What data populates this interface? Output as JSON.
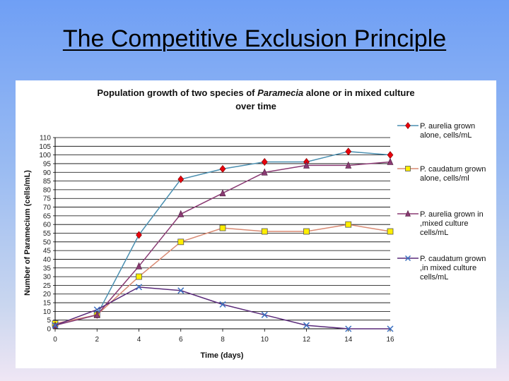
{
  "slide": {
    "title": "The Competitive Exclusion Principle"
  },
  "chart_data": {
    "type": "line",
    "title_line1_pre": "Population growth of two species of ",
    "title_line1_italic": "Paramecia",
    "title_line1_post": "  alone or in mixed culture",
    "title_line2": "over time",
    "xlabel": "Time (days)",
    "ylabel": "Number of Paramecium (cells/mL)",
    "x": [
      0,
      2,
      4,
      6,
      8,
      10,
      12,
      14,
      16
    ],
    "xlim": [
      0,
      16
    ],
    "ylim": [
      0,
      110
    ],
    "yticks": [
      0,
      5,
      10,
      15,
      20,
      25,
      30,
      35,
      40,
      45,
      50,
      55,
      60,
      65,
      70,
      75,
      80,
      85,
      90,
      95,
      100,
      105,
      110
    ],
    "grid": true,
    "legend_position": "right",
    "series": [
      {
        "name_lines": [
          "P. aurelia grown",
          "alone, cells/mL"
        ],
        "values": [
          2,
          8,
          54,
          86,
          92,
          96,
          96,
          102,
          100
        ],
        "line_color": "#4a8fb0",
        "marker": "diamond",
        "marker_color": "#e8000c"
      },
      {
        "name_lines": [
          "P. caudatum grown",
          "alone, cells/ml"
        ],
        "values": [
          3,
          8,
          30,
          50,
          58,
          56,
          56,
          60,
          56
        ],
        "line_color": "#d98a73",
        "marker": "square",
        "marker_color": "#ffee00"
      },
      {
        "name_lines": [
          "P. aurelia grown in",
          ",mixed culture",
          "cells/mL"
        ],
        "values": [
          2,
          8,
          36,
          66,
          78,
          90,
          94,
          94,
          96
        ],
        "line_color": "#8a3a73",
        "marker": "triangle",
        "marker_color": "#8a3a73"
      },
      {
        "name_lines": [
          "P. caudatum grown",
          ",in mixed culture",
          "cells/mL"
        ],
        "values": [
          2,
          11,
          24,
          22,
          14,
          8,
          2,
          0,
          0
        ],
        "line_color": "#5a2a7a",
        "marker": "x",
        "marker_color": "#3a6fc0"
      }
    ]
  }
}
